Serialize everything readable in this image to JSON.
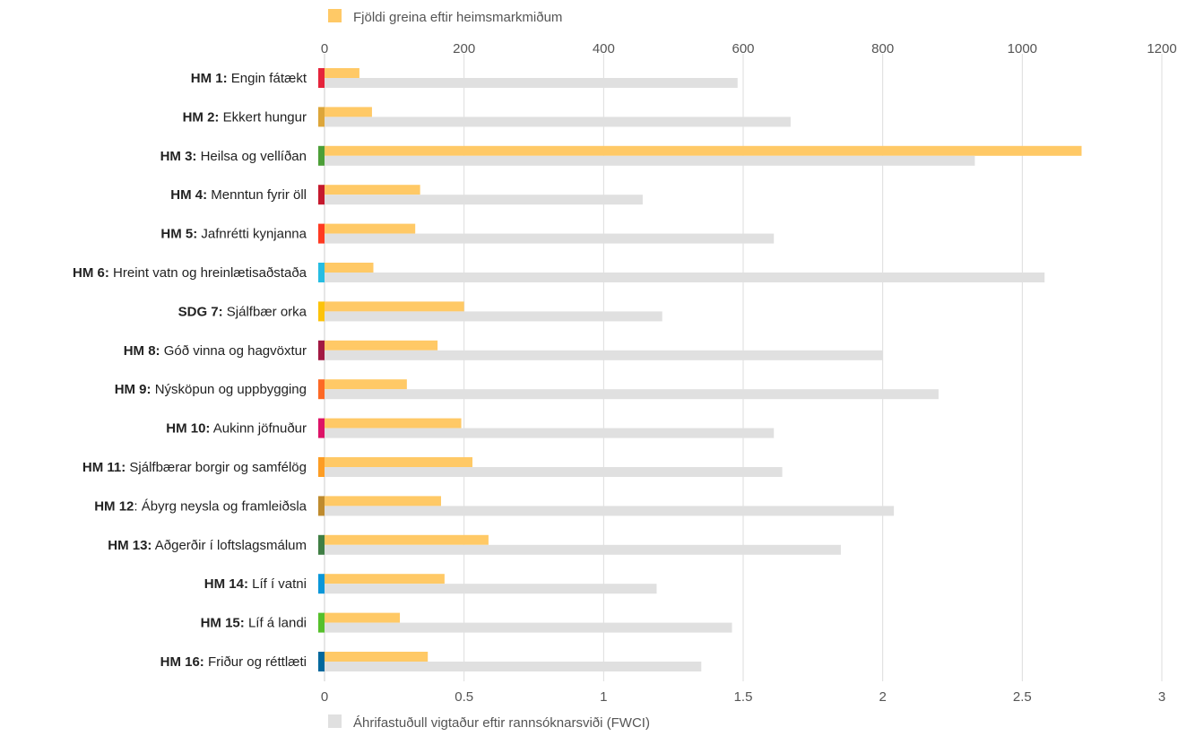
{
  "chart_data": {
    "type": "bar",
    "orientation": "horizontal",
    "categories": [
      {
        "code": "HM 1:",
        "name": "Engin fátækt",
        "color": "#E5243B"
      },
      {
        "code": "HM 2:",
        "name": "Ekkert hungur",
        "color": "#DDA63A"
      },
      {
        "code": "HM 3:",
        "name": "Heilsa og vellíðan",
        "color": "#4C9F38"
      },
      {
        "code": "HM 4:",
        "name": "Menntun fyrir öll",
        "color": "#C5192D"
      },
      {
        "code": "HM 5:",
        "name": "Jafnrétti kynjanna",
        "color": "#FF3A21"
      },
      {
        "code": "HM 6:",
        "name": "Hreint vatn og hreinlætisaðstaða",
        "color": "#26BDE2"
      },
      {
        "code": "SDG 7:",
        "name": "Sjálfbær orka",
        "color": "#FCC30B"
      },
      {
        "code": "HM 8:",
        "name": "Góð vinna og hagvöxtur",
        "color": "#A21942"
      },
      {
        "code": "HM 9:",
        "name": "Nýsköpun og uppbygging",
        "color": "#FD6925"
      },
      {
        "code": "HM 10:",
        "name": "Aukinn jöfnuður",
        "color": "#DD1367"
      },
      {
        "code": "HM 11:",
        "name": "Sjálfbærar borgir og samfélög",
        "color": "#FD9D24"
      },
      {
        "code": "HM 12",
        "name": ": Ábyrg neysla og framleiðsla",
        "color": "#BF8B2E"
      },
      {
        "code": "HM 13:",
        "name": "Aðgerðir í loftslagsmálum",
        "color": "#3F7E44"
      },
      {
        "code": "HM 14:",
        "name": "Líf í vatni",
        "color": "#0A97D9"
      },
      {
        "code": "HM 15:",
        "name": "Líf á landi",
        "color": "#56C02B"
      },
      {
        "code": "HM 16:",
        "name": "Friður og réttlæti",
        "color": "#00689D"
      }
    ],
    "series": [
      {
        "name": "Fjöldi greina eftir heimsmarkmiðum",
        "axis": "top",
        "color": "#FFC966",
        "values": [
          50,
          68,
          1085,
          137,
          130,
          70,
          200,
          162,
          118,
          196,
          212,
          167,
          235,
          172,
          108,
          148
        ]
      },
      {
        "name": "Áhrifastuðull vigtaður eftir rannsóknarsviði (FWCI)",
        "axis": "bottom",
        "color": "#E0E0E0",
        "values": [
          1.48,
          1.67,
          2.33,
          1.14,
          1.61,
          2.58,
          1.21,
          2.0,
          2.2,
          1.61,
          1.64,
          2.04,
          1.85,
          1.19,
          1.46,
          1.35
        ]
      }
    ],
    "top_axis": {
      "range": [
        0,
        1200
      ],
      "ticks": [
        0,
        200,
        400,
        600,
        800,
        1000,
        1200
      ]
    },
    "bottom_axis": {
      "range": [
        0,
        3
      ],
      "ticks": [
        0,
        0.5,
        1,
        1.5,
        2,
        2.5,
        3
      ],
      "tick_labels": [
        "0",
        "0.5",
        "1",
        "1.5",
        "2",
        "2.5",
        "3"
      ]
    },
    "grid": true,
    "legend": {
      "top": "Fjöldi greina eftir heimsmarkmiðum",
      "bottom": "Áhrifastuðull vigtaður eftir rannsóknarsviði (FWCI)"
    }
  }
}
